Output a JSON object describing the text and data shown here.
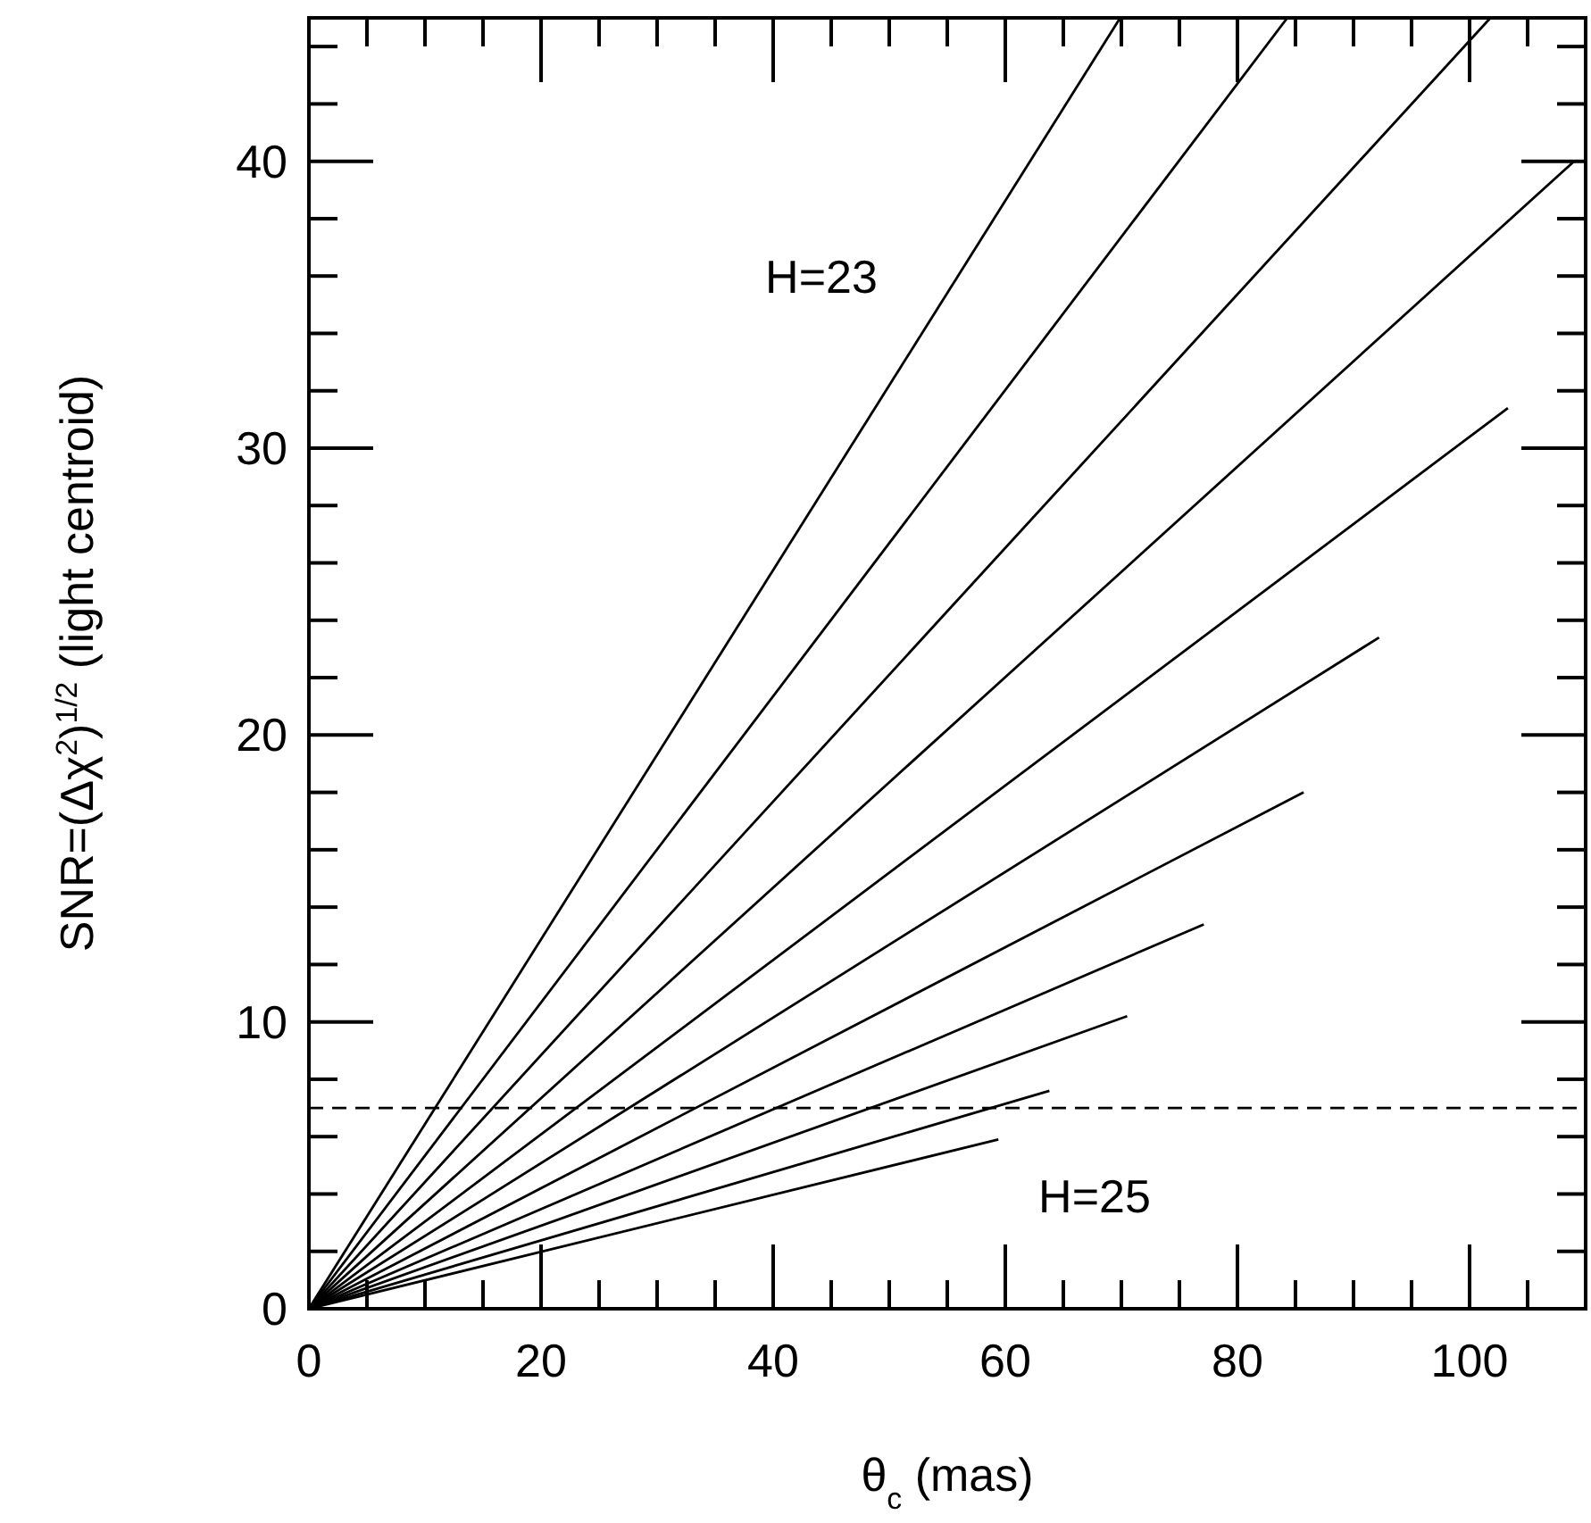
{
  "chart_data": {
    "type": "line",
    "xlabel": "θ$_{c}$ (mas)",
    "ylabel": "SNR=(Δχ$^{2}$)$^{1/2}$ (light centroid)",
    "xlim": [
      0,
      110
    ],
    "ylim": [
      0,
      45
    ],
    "xticks": [
      0,
      {
        "value": 5,
        "label": null
      },
      {
        "value": 10,
        "label": null
      },
      {
        "value": 15,
        "label": null
      },
      20,
      {
        "value": 25,
        "label": null
      },
      {
        "value": 30,
        "label": null
      },
      {
        "value": 35,
        "label": null
      },
      40,
      {
        "value": 45,
        "label": null
      },
      {
        "value": 50,
        "label": null
      },
      {
        "value": 55,
        "label": null
      },
      60,
      {
        "value": 65,
        "label": null
      },
      {
        "value": 70,
        "label": null
      },
      {
        "value": 75,
        "label": null
      },
      80,
      {
        "value": 85,
        "label": null
      },
      {
        "value": 90,
        "label": null
      },
      {
        "value": 95,
        "label": null
      },
      100,
      {
        "value": 105,
        "label": null
      }
    ],
    "yticks": [
      0,
      {
        "value": 2,
        "label": null
      },
      {
        "value": 4,
        "label": null
      },
      {
        "value": 6,
        "label": null
      },
      {
        "value": 8,
        "label": null
      },
      10,
      {
        "value": 12,
        "label": null
      },
      {
        "value": 14,
        "label": null
      },
      {
        "value": 16,
        "label": null
      },
      {
        "value": 18,
        "label": null
      },
      20,
      {
        "value": 22,
        "label": null
      },
      {
        "value": 24,
        "label": null
      },
      {
        "value": 26,
        "label": null
      },
      {
        "value": 28,
        "label": null
      },
      30,
      {
        "value": 32,
        "label": null
      },
      {
        "value": 34,
        "label": null
      },
      {
        "value": 36,
        "label": null
      },
      {
        "value": 38,
        "label": null
      },
      40,
      {
        "value": 42,
        "label": null
      },
      {
        "value": 44,
        "label": null
      }
    ],
    "grid": false,
    "line_style": "solid",
    "series": [
      {
        "color": "#000000",
        "x": [
          0,
          69.9
        ],
        "values": [
          0,
          45
        ]
      },
      {
        "color": "#000000",
        "x": [
          0,
          84.3
        ],
        "values": [
          0,
          45
        ]
      },
      {
        "color": "#000000",
        "x": [
          0,
          101.8
        ],
        "values": [
          0,
          45
        ]
      },
      {
        "color": "#000000",
        "x": [
          0,
          109
        ],
        "values": [
          0,
          40
        ]
      },
      {
        "color": "#000000",
        "x": [
          0,
          103.3
        ],
        "values": [
          0,
          31.4
        ]
      },
      {
        "color": "#000000",
        "x": [
          0,
          92.2
        ],
        "values": [
          0,
          23.4
        ]
      },
      {
        "color": "#000000",
        "x": [
          0,
          85.7
        ],
        "values": [
          0,
          18
        ]
      },
      {
        "color": "#000000",
        "x": [
          0,
          77.1
        ],
        "values": [
          0,
          13.4
        ]
      },
      {
        "color": "#000000",
        "x": [
          0,
          70.5
        ],
        "values": [
          0,
          10.2
        ]
      },
      {
        "color": "#000000",
        "x": [
          0,
          63.8
        ],
        "values": [
          0,
          7.6
        ]
      },
      {
        "color": "#000000",
        "x": [
          0,
          59.4
        ],
        "values": [
          0,
          5.9
        ]
      }
    ],
    "ref_lines": [
      {
        "axis": "y",
        "value": 7,
        "color": "#000000",
        "line_style": "dashed"
      }
    ],
    "annotations": [
      "H=23",
      "H=25"
    ]
  }
}
